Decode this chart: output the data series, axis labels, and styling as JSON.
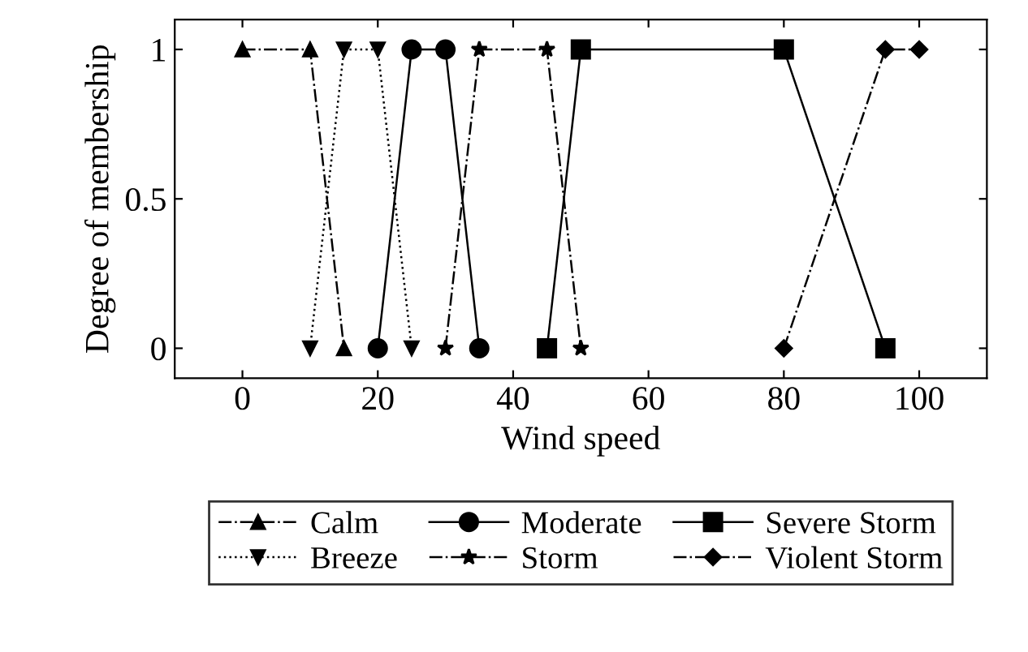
{
  "chart_data": {
    "type": "line",
    "xlabel": "Wind speed",
    "ylabel": "Degree of membership",
    "xlim": [
      -10,
      110
    ],
    "ylim": [
      -0.1,
      1.1
    ],
    "xticks": [
      0,
      20,
      40,
      60,
      80,
      100
    ],
    "yticks": [
      0,
      {
        "value": 0.5,
        "label": "0.5"
      },
      1
    ],
    "grid": false,
    "legend": "bottom",
    "series": [
      {
        "name": "Calm",
        "color": "#000000",
        "x": [
          0,
          10,
          15
        ],
        "values": [
          1,
          1,
          0
        ],
        "marker": "triangle",
        "line_style": "dashdot"
      },
      {
        "name": "Breeze",
        "color": "#000000",
        "x": [
          10,
          15,
          20,
          25
        ],
        "values": [
          0,
          1,
          1,
          0
        ],
        "marker": "triangle_down",
        "line_style": "dotted"
      },
      {
        "name": "Moderate",
        "color": "#000000",
        "x": [
          20,
          25,
          30,
          35
        ],
        "values": [
          0,
          1,
          1,
          0
        ],
        "marker": "circle",
        "line_style": "solid"
      },
      {
        "name": "Storm",
        "color": "#000000",
        "x": [
          30,
          35,
          45,
          50
        ],
        "values": [
          0,
          1,
          1,
          0
        ],
        "marker": "star",
        "line_style": "dashdot"
      },
      {
        "name": "Severe Storm",
        "color": "#000000",
        "x": [
          45,
          50,
          80,
          95
        ],
        "values": [
          0,
          1,
          1,
          0
        ],
        "marker": "square",
        "line_style": "solid"
      },
      {
        "name": "Violent Storm",
        "color": "#000000",
        "x": [
          80,
          95,
          100
        ],
        "values": [
          0,
          1,
          1
        ],
        "marker": "diamond",
        "line_style": "dashdot"
      }
    ]
  }
}
